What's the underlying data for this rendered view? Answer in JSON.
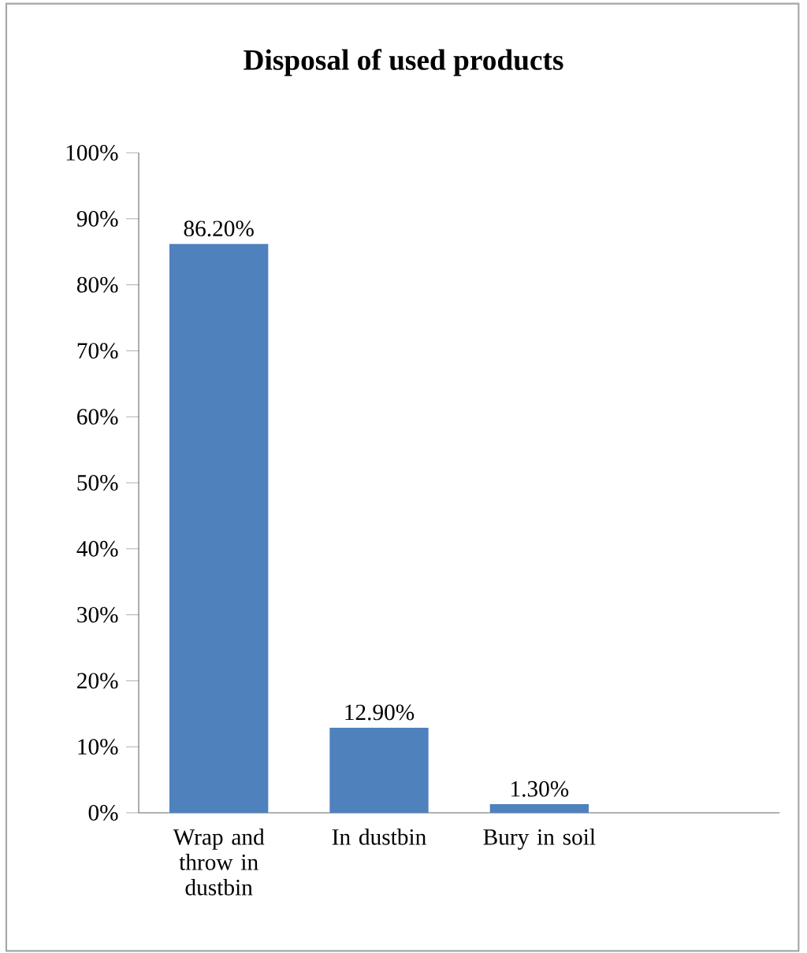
{
  "chart_data": {
    "type": "bar",
    "title": "Disposal of used products",
    "categories": [
      "Wrap and throw in dustbin",
      "In dustbin",
      "Bury in soil",
      null
    ],
    "values": [
      86.2,
      12.9,
      1.3,
      null
    ],
    "value_labels": [
      "86.20%",
      "12.90%",
      "1.30%",
      null
    ],
    "color": "#4f81bd",
    "ylim": [
      0,
      100
    ],
    "yticks": [
      {
        "value": 0,
        "label": "0%"
      },
      {
        "value": 10,
        "label": "10%"
      },
      {
        "value": 20,
        "label": "20%"
      },
      {
        "value": 30,
        "label": "30%"
      },
      {
        "value": 40,
        "label": "40%"
      },
      {
        "value": 50,
        "label": "50%"
      },
      {
        "value": 60,
        "label": "60%"
      },
      {
        "value": 70,
        "label": "70%"
      },
      {
        "value": 80,
        "label": "80%"
      },
      {
        "value": 90,
        "label": "90%"
      },
      {
        "value": 100,
        "label": "100%"
      }
    ],
    "grid": false
  }
}
